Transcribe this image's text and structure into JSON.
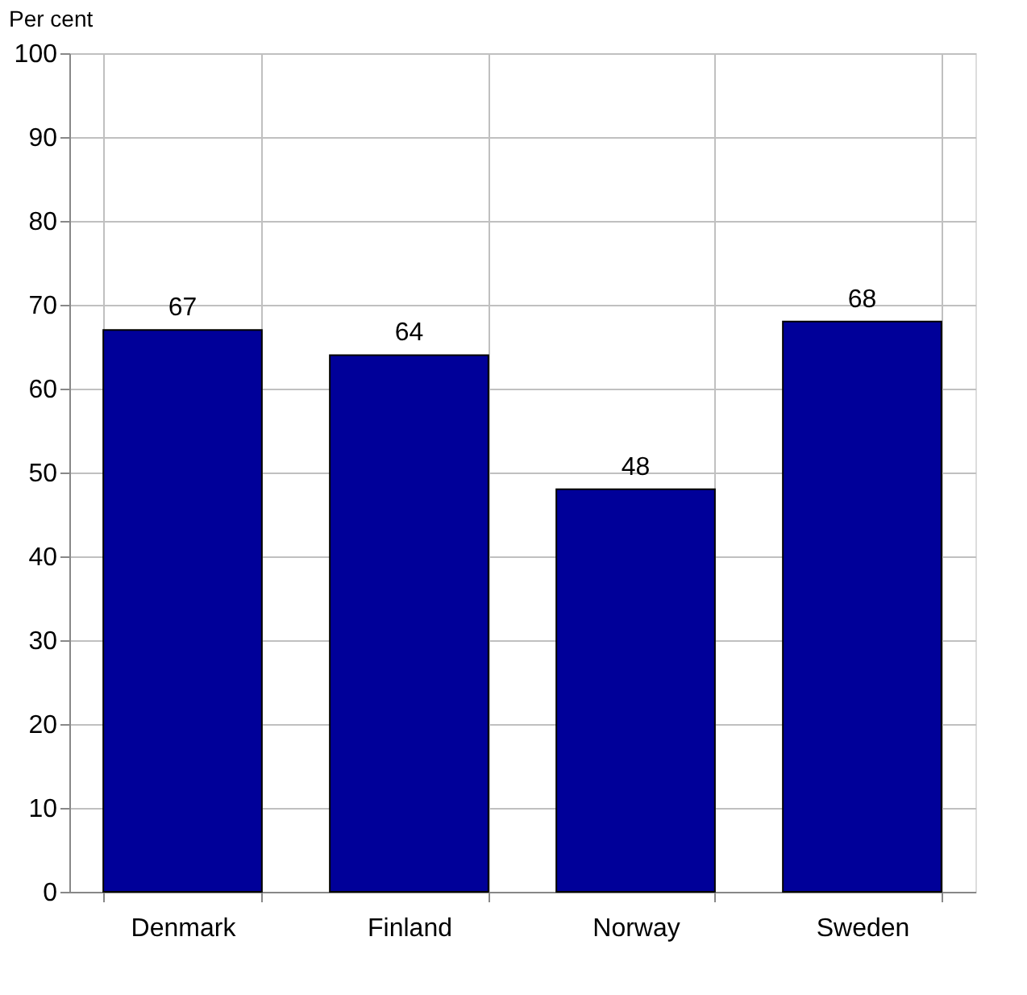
{
  "chart_data": {
    "type": "bar",
    "ylabel": "Per cent",
    "categories": [
      "Denmark",
      "Finland",
      "Norway",
      "Sweden"
    ],
    "values": [
      67,
      64,
      48,
      68
    ],
    "color": "#000099",
    "ylim": [
      0,
      100
    ],
    "yticks": [
      0,
      10,
      20,
      30,
      40,
      50,
      60,
      70,
      80,
      90,
      100
    ],
    "grid": true,
    "data_labels": true
  }
}
